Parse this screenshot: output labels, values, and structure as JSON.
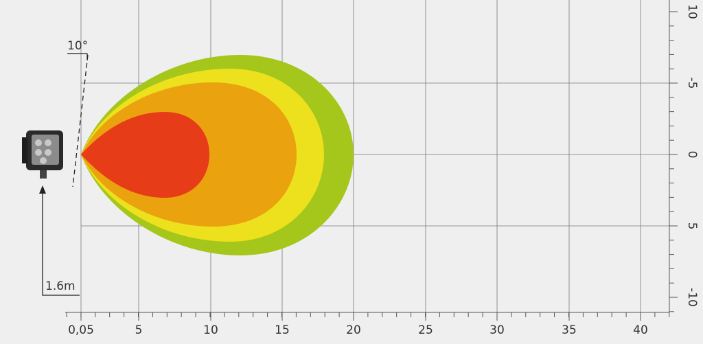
{
  "x_axis": {
    "labels": [
      "0,05",
      "5",
      "10",
      "15",
      "20",
      "25",
      "30",
      "35",
      "40"
    ]
  },
  "y_axis": {
    "labels": [
      "10",
      "-5",
      "0",
      "5",
      "-10"
    ]
  },
  "annotations": {
    "angle": "10°",
    "mount_height": "1.6m"
  }
}
